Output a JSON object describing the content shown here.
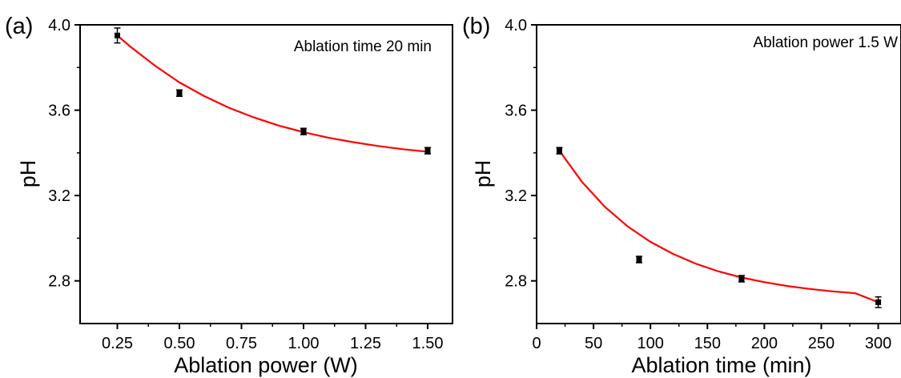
{
  "chart_data": [
    {
      "panel_label": "(a)",
      "type": "scatter",
      "annotation": "Ablation time 20 min",
      "xlabel": "Ablation power (W)",
      "ylabel": "pH",
      "xlim": [
        0.1,
        1.6
      ],
      "ylim": [
        2.6,
        4.0
      ],
      "xticks": [
        0.25,
        0.5,
        0.75,
        1.0,
        1.25,
        1.5
      ],
      "xtick_labels": [
        "0.25",
        "0.50",
        "0.75",
        "1.00",
        "1.25",
        "1.50"
      ],
      "yticks": [
        2.8,
        3.2,
        3.6,
        4.0
      ],
      "ytick_labels": [
        "2.8",
        "3.2",
        "3.6",
        "4.0"
      ],
      "points": [
        {
          "x": 0.25,
          "y": 3.95,
          "err": 0.035
        },
        {
          "x": 0.5,
          "y": 3.68,
          "err": 0.015
        },
        {
          "x": 1.0,
          "y": 3.5,
          "err": 0.015
        },
        {
          "x": 1.5,
          "y": 3.41,
          "err": 0.015
        }
      ],
      "fit": {
        "model": "exponential decay",
        "x": [
          0.25,
          0.3,
          0.4,
          0.5,
          0.6,
          0.7,
          0.8,
          0.9,
          1.0,
          1.1,
          1.2,
          1.3,
          1.4,
          1.5
        ],
        "y": [
          3.95,
          3.9,
          3.81,
          3.73,
          3.666,
          3.611,
          3.566,
          3.528,
          3.497,
          3.471,
          3.45,
          3.432,
          3.417,
          3.405
        ]
      },
      "colors": {
        "points": "#000000",
        "fit": "#ff0000"
      },
      "grid": false
    },
    {
      "panel_label": "(b)",
      "type": "scatter",
      "annotation": "Ablation power 1.5 W",
      "xlabel": "Ablation time (min)",
      "ylabel": "pH",
      "xlim": [
        0,
        320
      ],
      "ylim": [
        2.6,
        4.0
      ],
      "xticks": [
        0,
        50,
        100,
        150,
        200,
        250,
        300
      ],
      "xtick_labels": [
        "0",
        "50",
        "100",
        "150",
        "200",
        "250",
        "300"
      ],
      "yticks": [
        2.8,
        3.2,
        3.6,
        4.0
      ],
      "ytick_labels": [
        "2.8",
        "3.2",
        "3.6",
        "4.0"
      ],
      "points": [
        {
          "x": 20,
          "y": 3.41,
          "err": 0.015
        },
        {
          "x": 90,
          "y": 2.9,
          "err": 0.015
        },
        {
          "x": 180,
          "y": 2.81,
          "err": 0.015
        },
        {
          "x": 300,
          "y": 2.7,
          "err": 0.025
        }
      ],
      "fit": {
        "model": "exponential decay",
        "x": [
          20,
          40,
          60,
          80,
          100,
          120,
          140,
          160,
          180,
          200,
          220,
          240,
          260,
          280,
          300
        ],
        "y": [
          3.41,
          3.263,
          3.147,
          3.055,
          2.983,
          2.926,
          2.88,
          2.844,
          2.816,
          2.794,
          2.776,
          2.762,
          2.751,
          2.742,
          2.7
        ]
      },
      "colors": {
        "points": "#000000",
        "fit": "#ff0000"
      },
      "grid": false
    }
  ]
}
